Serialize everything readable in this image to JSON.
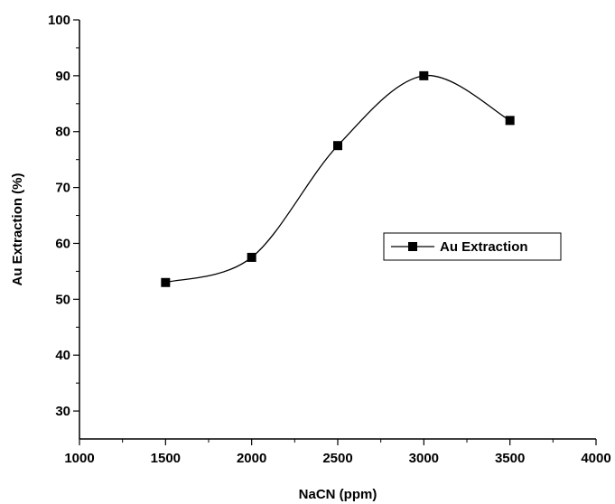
{
  "chart_data": {
    "type": "line",
    "xlabel": "NaCN (ppm)",
    "ylabel": "Au Extraction (%)",
    "xlim": [
      1000,
      4000
    ],
    "ylim": [
      25,
      100
    ],
    "xticks": [
      1000,
      1500,
      2000,
      2500,
      3000,
      3500,
      4000
    ],
    "yticks": [
      30,
      40,
      50,
      60,
      70,
      80,
      90,
      100
    ],
    "grid": false,
    "legend": "center-right",
    "series": [
      {
        "name": "Au Extraction",
        "marker": "square",
        "line": "smooth",
        "color": "#000000",
        "x": [
          1500,
          2000,
          2500,
          3000,
          3500
        ],
        "y": [
          53,
          57.5,
          77.5,
          90,
          82
        ]
      }
    ]
  }
}
